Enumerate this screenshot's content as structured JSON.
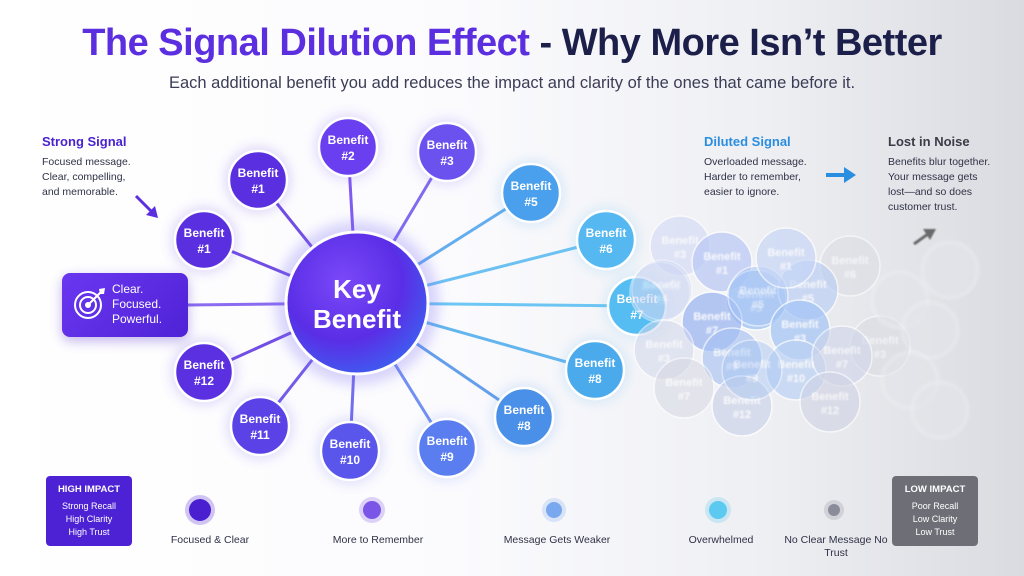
{
  "title": {
    "part1": "The Signal Dilution Effect",
    "part2": " - Why More Isn’t Better"
  },
  "subtitle": "Each additional benefit you add reduces the impact and clarity of the ones that came before it.",
  "strong_signal": {
    "heading": "Strong Signal",
    "lines": [
      "Focused message.",
      "Clear, compelling,",
      "and memorable."
    ]
  },
  "diluted_signal": {
    "heading": "Diluted Signal",
    "lines": [
      "Overloaded message.",
      "Harder to remember,",
      "easier to ignore."
    ]
  },
  "lost_noise": {
    "heading": "Lost in Noise",
    "lines": [
      "Benefits blur together.",
      "Your message gets",
      "lost—and so does",
      "customer trust."
    ]
  },
  "pill": {
    "lines": [
      "Clear.",
      "Focused.",
      "Powerful."
    ]
  },
  "center": {
    "line1": "Key",
    "line2": "Benefit"
  },
  "benefit_word": "Benefit",
  "nodes": [
    "#1",
    "#1",
    "#2",
    "#3",
    "#5",
    "#6",
    "#7",
    "#8",
    "#8",
    "#9",
    "#10",
    "#11",
    "#12"
  ],
  "cloud_labels": [
    [
      "Benefit",
      "#3"
    ],
    [
      "Benefit",
      "#1"
    ],
    [
      "Benefit",
      "#1"
    ],
    [
      "Benefit",
      "#6"
    ],
    [
      "Benefit",
      "#4"
    ],
    [
      "Benefit",
      "#5"
    ],
    [
      "Benefit",
      "#5"
    ],
    [
      "Benefit",
      "#7"
    ],
    [
      "Benefit",
      "#5"
    ],
    [
      "Benefit",
      "#3"
    ],
    [
      "Benefit",
      "#3"
    ],
    [
      "Benefit",
      "#9"
    ],
    [
      "Benefit",
      "#10"
    ],
    [
      "Benefit",
      "#7"
    ],
    [
      "Benefit",
      "#1"
    ],
    [
      "Benefit",
      "#3"
    ],
    [
      "Benefit",
      "#7"
    ],
    [
      "Benefit",
      "#12"
    ],
    [
      "Benefit",
      "#12"
    ],
    [
      "Benefit",
      "#9"
    ]
  ],
  "timeline": {
    "high": {
      "heading": "HIGH IMPACT",
      "lines": [
        "Strong Recall",
        "High Clarity",
        "High Trust"
      ]
    },
    "low": {
      "heading": "LOW IMPACT",
      "lines": [
        "Poor Recall",
        "Low Clarity",
        "Low Trust"
      ]
    },
    "stages": [
      "Focused & Clear",
      "More to Remember",
      "Message Gets Weaker",
      "Overwhelmed",
      "No Clear Message No Trust"
    ],
    "stage_colors": [
      "#4a1fd0",
      "#7a55e8",
      "#7aa8ee",
      "#5cc9f0",
      "#8a8d99"
    ]
  },
  "colors": {
    "accent": "#5b2ee0",
    "dark_text": "#1c1f4a",
    "light_blue": "#3d8ee8"
  }
}
